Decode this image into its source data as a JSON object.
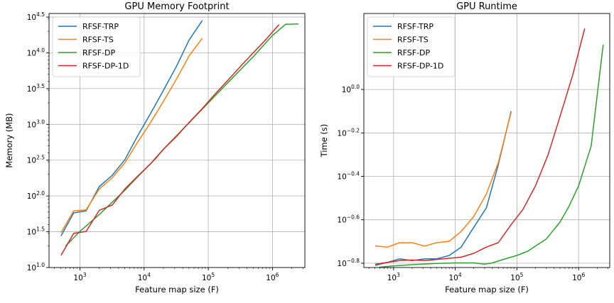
{
  "chart_data": [
    {
      "type": "line",
      "title": "GPU Memory Footprint",
      "xlabel": "Feature map size (F)",
      "ylabel": "Memory (MB)",
      "xscale": "log",
      "yscale": "log",
      "xlim": [
        330,
        3200000
      ],
      "ylim": [
        10,
        35481
      ],
      "x_ticks": [
        {
          "value": 1000,
          "base": "10",
          "exp": "3"
        },
        {
          "value": 10000,
          "base": "10",
          "exp": "4"
        },
        {
          "value": 100000,
          "base": "10",
          "exp": "5"
        },
        {
          "value": 1000000,
          "base": "10",
          "exp": "6"
        }
      ],
      "y_ticks": [
        {
          "value": 10,
          "base": "10",
          "exp": "1.0"
        },
        {
          "value": 31.62,
          "base": "10",
          "exp": "1.5"
        },
        {
          "value": 100,
          "base": "10",
          "exp": "2.0"
        },
        {
          "value": 316.2,
          "base": "10",
          "exp": "2.5"
        },
        {
          "value": 1000,
          "base": "10",
          "exp": "3.0"
        },
        {
          "value": 3162,
          "base": "10",
          "exp": "3.5"
        },
        {
          "value": 10000,
          "base": "10",
          "exp": "4.0"
        },
        {
          "value": 31623,
          "base": "10",
          "exp": "4.5"
        }
      ],
      "grid": true,
      "legend_position": "top-left",
      "series": [
        {
          "name": "RFSF-TRP",
          "color": "#1f77b4",
          "x": [
            512,
            800,
            1250,
            2000,
            3200,
            5000,
            8000,
            12500,
            20000,
            32000,
            50000,
            80000
          ],
          "y": [
            28,
            58,
            62,
            135,
            195,
            320,
            700,
            1400,
            3000,
            6500,
            15000,
            28000
          ]
        },
        {
          "name": "RFSF-TS",
          "color": "#ff7f0e",
          "x": [
            512,
            800,
            1250,
            2000,
            3200,
            5000,
            8000,
            12500,
            20000,
            32000,
            50000,
            80000
          ],
          "y": [
            31,
            62,
            64,
            125,
            180,
            290,
            570,
            1050,
            2100,
            4300,
            9000,
            15800
          ]
        },
        {
          "name": "RFSF-DP",
          "color": "#2ca02c",
          "x": [
            600,
            1000,
            2000,
            5000,
            10000,
            15000,
            20000,
            50000,
            100000,
            200000,
            500000,
            1000000,
            1600000,
            2500000
          ],
          "y": [
            20,
            32,
            55,
            120,
            230,
            330,
            450,
            1050,
            2000,
            3800,
            8800,
            17500,
            25000,
            25300
          ]
        },
        {
          "name": "RFSF-DP-1D",
          "color": "#d62728",
          "x": [
            512,
            800,
            1250,
            2000,
            3200,
            5000,
            8000,
            12500,
            20000,
            32000,
            50000,
            80000,
            125000,
            200000,
            320000,
            500000,
            800000,
            1250000
          ],
          "y": [
            15,
            30,
            32,
            63,
            75,
            125,
            190,
            280,
            450,
            680,
            1060,
            1650,
            2600,
            4100,
            6500,
            10000,
            15500,
            24500
          ]
        }
      ]
    },
    {
      "type": "line",
      "title": "GPU Runtime",
      "xlabel": "Feature map size (F)",
      "ylabel": "Time (s)",
      "xscale": "log",
      "yscale": "log",
      "xlim": [
        330,
        3200000
      ],
      "ylim": [
        0.1514,
        2.2387
      ],
      "x_ticks": [
        {
          "value": 1000,
          "base": "10",
          "exp": "3"
        },
        {
          "value": 10000,
          "base": "10",
          "exp": "4"
        },
        {
          "value": 100000,
          "base": "10",
          "exp": "5"
        },
        {
          "value": 1000000,
          "base": "10",
          "exp": "6"
        }
      ],
      "y_ticks": [
        {
          "value": 0.1585,
          "base": "10",
          "exp": "−0.8"
        },
        {
          "value": 0.2512,
          "base": "10",
          "exp": "−0.6"
        },
        {
          "value": 0.3981,
          "base": "10",
          "exp": "−0.4"
        },
        {
          "value": 0.631,
          "base": "10",
          "exp": "−0.2"
        },
        {
          "value": 1.0,
          "base": "10",
          "exp": "0.0"
        }
      ],
      "grid": true,
      "legend_position": "top-left",
      "series": [
        {
          "name": "RFSF-TRP",
          "color": "#1f77b4",
          "x": [
            512,
            800,
            1250,
            2000,
            3200,
            5000,
            8000,
            12500,
            20000,
            32000,
            50000,
            80000
          ],
          "y": [
            0.155,
            0.16,
            0.166,
            0.163,
            0.166,
            0.166,
            0.172,
            0.188,
            0.232,
            0.285,
            0.45,
            0.79
          ]
        },
        {
          "name": "RFSF-TS",
          "color": "#ff7f0e",
          "x": [
            512,
            800,
            1250,
            2000,
            3200,
            5000,
            8000,
            12500,
            20000,
            32000,
            50000,
            80000
          ],
          "y": [
            0.19,
            0.188,
            0.197,
            0.197,
            0.19,
            0.197,
            0.2,
            0.222,
            0.26,
            0.33,
            0.46,
            0.78
          ]
        },
        {
          "name": "RFSF-DP",
          "color": "#2ca02c",
          "x": [
            600,
            1000,
            2000,
            5000,
            10000,
            20000,
            30000,
            40000,
            60000,
            100000,
            150000,
            200000,
            300000,
            500000,
            700000,
            1000000,
            1600000,
            2500000
          ],
          "y": [
            0.152,
            0.154,
            0.156,
            0.158,
            0.159,
            0.159,
            0.157,
            0.159,
            0.165,
            0.172,
            0.18,
            0.19,
            0.205,
            0.245,
            0.29,
            0.36,
            0.55,
            1.6
          ]
        },
        {
          "name": "RFSF-DP-1D",
          "color": "#d62728",
          "x": [
            512,
            800,
            1250,
            2000,
            3200,
            5000,
            8000,
            12500,
            20000,
            32000,
            50000,
            80000,
            125000,
            200000,
            320000,
            500000,
            800000,
            1250000
          ],
          "y": [
            0.157,
            0.16,
            0.163,
            0.164,
            0.163,
            0.165,
            0.167,
            0.169,
            0.176,
            0.188,
            0.197,
            0.238,
            0.28,
            0.36,
            0.5,
            0.75,
            1.16,
            1.9
          ]
        }
      ]
    }
  ]
}
